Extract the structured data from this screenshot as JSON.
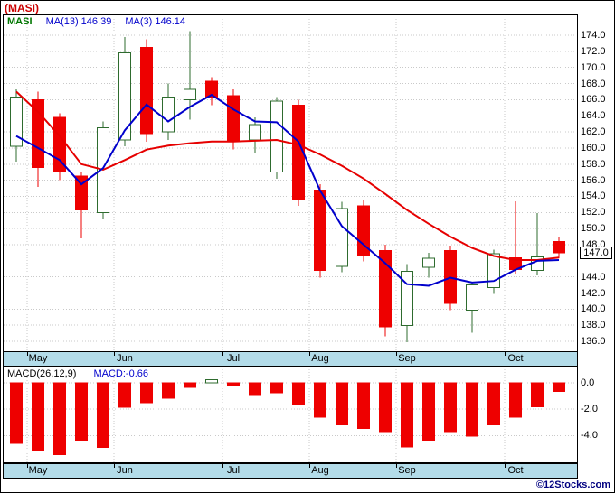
{
  "window": {
    "title": "(MASI)"
  },
  "price_panel": {
    "legend": {
      "symbol": "MASI",
      "ma13": "MA(13) 146.39",
      "ma3": "MA(3) 146.14"
    },
    "axis": {
      "current_price_label": "147.0"
    }
  },
  "macd_panel": {
    "title": "MACD(26,12,9)",
    "value": "MACD:-0.66"
  },
  "time_axis": {
    "months": [
      "May",
      "Jun",
      "Jul",
      "Aug",
      "Sep",
      "Oct"
    ],
    "month_start_indices": [
      1,
      5,
      10,
      14,
      18,
      23
    ]
  },
  "footer": {
    "watermark": "©12Stocks.com"
  },
  "colors": {
    "down": "#ee0000",
    "up_fill": "#ffffff",
    "up_stroke": "#2e6b2e",
    "ma_slow": "#e60000",
    "ma_fast": "#0000cc",
    "grid": "#c9c9c9",
    "band": "#b3dce9",
    "legend_symbol": "#007700",
    "legend_value": "#0000cc",
    "title": "#cc0000",
    "watermark": "#000080"
  },
  "chart_data": [
    {
      "type": "candlestick",
      "title": "(MASI)",
      "ylim": [
        135.0,
        174.9
      ],
      "yticks": [
        174,
        172,
        170,
        168,
        166,
        164,
        162,
        160,
        158,
        156,
        154,
        152,
        150,
        148,
        144,
        142,
        140,
        138,
        136
      ],
      "current_price": 147.0,
      "candles": [
        {
          "o": 160.2,
          "h": 167.3,
          "l": 158.3,
          "c": 166.3
        },
        {
          "o": 166.0,
          "h": 167.0,
          "l": 155.2,
          "c": 157.6
        },
        {
          "o": 163.8,
          "h": 164.3,
          "l": 156.0,
          "c": 157.0
        },
        {
          "o": 156.5,
          "h": 157.0,
          "l": 148.8,
          "c": 152.3
        },
        {
          "o": 152.0,
          "h": 163.3,
          "l": 151.2,
          "c": 162.5
        },
        {
          "o": 161.0,
          "h": 173.8,
          "l": 160.2,
          "c": 171.8
        },
        {
          "o": 172.5,
          "h": 173.5,
          "l": 160.8,
          "c": 161.8
        },
        {
          "o": 162.0,
          "h": 168.0,
          "l": 161.0,
          "c": 166.3
        },
        {
          "o": 166.0,
          "h": 174.5,
          "l": 163.5,
          "c": 167.3
        },
        {
          "o": 168.3,
          "h": 168.8,
          "l": 165.3,
          "c": 166.3
        },
        {
          "o": 166.5,
          "h": 167.3,
          "l": 159.8,
          "c": 160.8
        },
        {
          "o": 161.0,
          "h": 163.8,
          "l": 159.4,
          "c": 162.9
        },
        {
          "o": 157.0,
          "h": 166.3,
          "l": 156.2,
          "c": 165.8
        },
        {
          "o": 165.3,
          "h": 166.0,
          "l": 152.8,
          "c": 153.6
        },
        {
          "o": 154.8,
          "h": 155.5,
          "l": 143.9,
          "c": 144.8
        },
        {
          "o": 145.3,
          "h": 153.3,
          "l": 144.6,
          "c": 152.5
        },
        {
          "o": 152.8,
          "h": 153.5,
          "l": 145.9,
          "c": 146.7
        },
        {
          "o": 147.3,
          "h": 148.0,
          "l": 136.6,
          "c": 137.8
        },
        {
          "o": 138.0,
          "h": 145.6,
          "l": 135.9,
          "c": 144.7
        },
        {
          "o": 145.2,
          "h": 147.0,
          "l": 143.9,
          "c": 146.3
        },
        {
          "o": 147.3,
          "h": 147.9,
          "l": 139.9,
          "c": 140.7
        },
        {
          "o": 139.9,
          "h": 143.4,
          "l": 137.1,
          "c": 143.0
        },
        {
          "o": 142.7,
          "h": 147.4,
          "l": 141.9,
          "c": 146.9
        },
        {
          "o": 146.4,
          "h": 153.4,
          "l": 144.3,
          "c": 144.9
        },
        {
          "o": 144.8,
          "h": 151.9,
          "l": 144.2,
          "c": 146.5
        },
        {
          "o": 148.4,
          "h": 148.9,
          "l": 146.3,
          "c": 147.0
        }
      ],
      "series": [
        {
          "name": "MA(13)",
          "last_value": 146.39,
          "color": "#e60000",
          "width": 2,
          "values": [
            167.0,
            164.5,
            161.5,
            158.0,
            157.3,
            158.5,
            159.8,
            160.3,
            160.6,
            160.8,
            160.8,
            160.9,
            161.0,
            160.4,
            159.2,
            157.8,
            156.2,
            154.3,
            152.3,
            150.6,
            149.0,
            147.6,
            146.6,
            146.1,
            146.1,
            146.4
          ]
        },
        {
          "name": "MA(3)",
          "last_value": 146.14,
          "color": "#0000cc",
          "width": 2,
          "values": [
            161.5,
            160.0,
            158.5,
            155.5,
            157.5,
            162.2,
            165.4,
            163.3,
            165.1,
            166.6,
            164.8,
            163.3,
            163.2,
            160.8,
            154.7,
            150.3,
            148.0,
            145.7,
            143.1,
            142.9,
            143.9,
            143.3,
            143.5,
            144.9,
            146.0,
            146.1
          ]
        }
      ]
    },
    {
      "type": "bar",
      "title": "MACD(26,12,9)",
      "last_value": -0.66,
      "ylim": [
        -6.0,
        1.2
      ],
      "yticks": [
        0,
        -2,
        -4
      ],
      "values": [
        -4.6,
        -5.1,
        -5.45,
        -4.35,
        -4.9,
        -1.85,
        -1.5,
        -1.15,
        -0.35,
        0.25,
        -0.2,
        -0.95,
        -0.75,
        -1.6,
        -2.6,
        -3.2,
        -3.45,
        -3.7,
        -4.85,
        -4.35,
        -3.7,
        -4.05,
        -3.2,
        -2.6,
        -1.8,
        -0.66
      ]
    }
  ]
}
